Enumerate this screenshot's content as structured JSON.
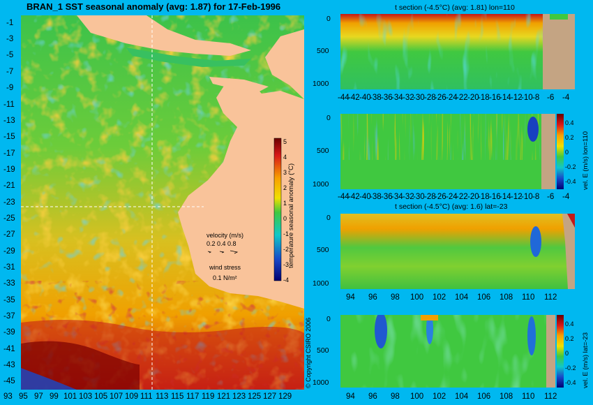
{
  "map": {
    "title": "BRAN_1 SST seasonal anomaly (avg: 1.87) for 17-Feb-1996",
    "lat_ticks": [
      "-1",
      "-3",
      "-5",
      "-7",
      "-9",
      "-11",
      "-13",
      "-15",
      "-17",
      "-19",
      "-21",
      "-23",
      "-25",
      "-27",
      "-29",
      "-31",
      "-33",
      "-35",
      "-37",
      "-39",
      "-41",
      "-43",
      "-45"
    ],
    "lon_ticks": [
      "93",
      "95",
      "97",
      "99",
      "101",
      "103",
      "105",
      "107",
      "109",
      "111",
      "113",
      "115",
      "117",
      "119",
      "121",
      "123",
      "125",
      "127",
      "129"
    ],
    "colorbar_label": "temperature seasonal anomaly (°C)",
    "colorbar_ticks": [
      "5",
      "4",
      "3",
      "2",
      "1",
      "0",
      "-1",
      "-2",
      "-3",
      "-4"
    ],
    "velocity_label": "velocity (m/s)",
    "velocity_values": "0.2 0.4 0.8",
    "wind_label": "wind stress",
    "wind_value": "0.1 N/m²",
    "copyright": "© Copyright CSIRO 2006",
    "section_lon": 110,
    "section_lat": -23
  },
  "panels": [
    {
      "title": "t section (-4.5°C) (avg: 1.81) lon=110",
      "y_ticks": [
        "0",
        "500",
        "1000"
      ],
      "x_ticks": [
        "-44",
        "-42",
        "-40",
        "-38",
        "-36",
        "-34",
        "-32",
        "-30",
        "-28",
        "-26",
        "-24",
        "-22",
        "-20",
        "-18",
        "-16",
        "-14",
        "-12",
        "-10",
        "-8",
        "-6",
        "-4"
      ],
      "land_color": "#c4a483"
    },
    {
      "title": "",
      "y_ticks": [
        "0",
        "500",
        "1000"
      ],
      "x_ticks": [
        "-44",
        "-42",
        "-40",
        "-38",
        "-36",
        "-34",
        "-32",
        "-30",
        "-28",
        "-26",
        "-24",
        "-22",
        "-20",
        "-18",
        "-16",
        "-14",
        "-12",
        "-10",
        "-8",
        "-6",
        "-4"
      ],
      "colorbar_ticks": [
        "0.4",
        "0.2",
        "0",
        "-0.2",
        "-0.4"
      ],
      "colorbar_label": "vel. E (m/s) lon=110"
    },
    {
      "title": "t section (-4.5°C) (avg: 1.6) lat=-23",
      "y_ticks": [
        "0",
        "500",
        "1000"
      ],
      "x_ticks": [
        "94",
        "96",
        "98",
        "100",
        "102",
        "104",
        "106",
        "108",
        "110",
        "112"
      ]
    },
    {
      "title": "",
      "y_ticks": [
        "0",
        "500",
        "1000"
      ],
      "x_ticks": [
        "94",
        "96",
        "98",
        "100",
        "102",
        "104",
        "106",
        "108",
        "110",
        "112"
      ],
      "colorbar_ticks": [
        "0.4",
        "0.2",
        "0",
        "-0.2",
        "-0.4"
      ],
      "colorbar_label": "vel. E (m/s) lat=-23"
    }
  ],
  "colors": {
    "background": "#00b8f0",
    "land": "#f9c39a",
    "sea_base": "#34c248",
    "warm": "#f0a000",
    "hot": "#c41818",
    "cold": "#1848c8"
  }
}
